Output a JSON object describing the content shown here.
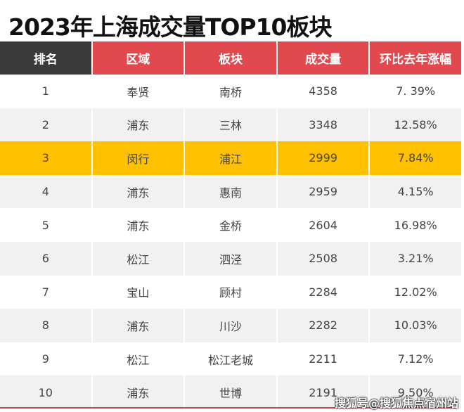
{
  "title": "2023年上海成交量TOP10板块",
  "headers": [
    "排名",
    "区域",
    "板块",
    "成交量",
    "环比去年涨幅"
  ],
  "rows": [
    [
      "1",
      "奉贤",
      "南桥",
      "4358",
      "7. 39%"
    ],
    [
      "2",
      "浦东",
      "三林",
      "3348",
      "12.58%"
    ],
    [
      "3",
      "闵行",
      "浦江",
      "2999",
      "7.84%"
    ],
    [
      "4",
      "浦东",
      "惠南",
      "2959",
      "4.15%"
    ],
    [
      "5",
      "浦东",
      "金桥",
      "2604",
      "16.98%"
    ],
    [
      "6",
      "松江",
      "泗泾",
      "2508",
      "3.21%"
    ],
    [
      "7",
      "宝山",
      "顾村",
      "2284",
      "12.02%"
    ],
    [
      "8",
      "浦东",
      "川沙",
      "2282",
      "10.03%"
    ],
    [
      "9",
      "松江",
      "松江老城",
      "2211",
      "7.12%"
    ],
    [
      "10",
      "浦东",
      "世博",
      "2191",
      "9.50%"
    ]
  ],
  "highlight_row": 3,
  "colors": {
    "header_red": "#e04a4f",
    "header_dark": "#3a3a3a",
    "highlight": "#ffc000"
  },
  "watermark": "搜狐号@搜狐焦点宿州站"
}
